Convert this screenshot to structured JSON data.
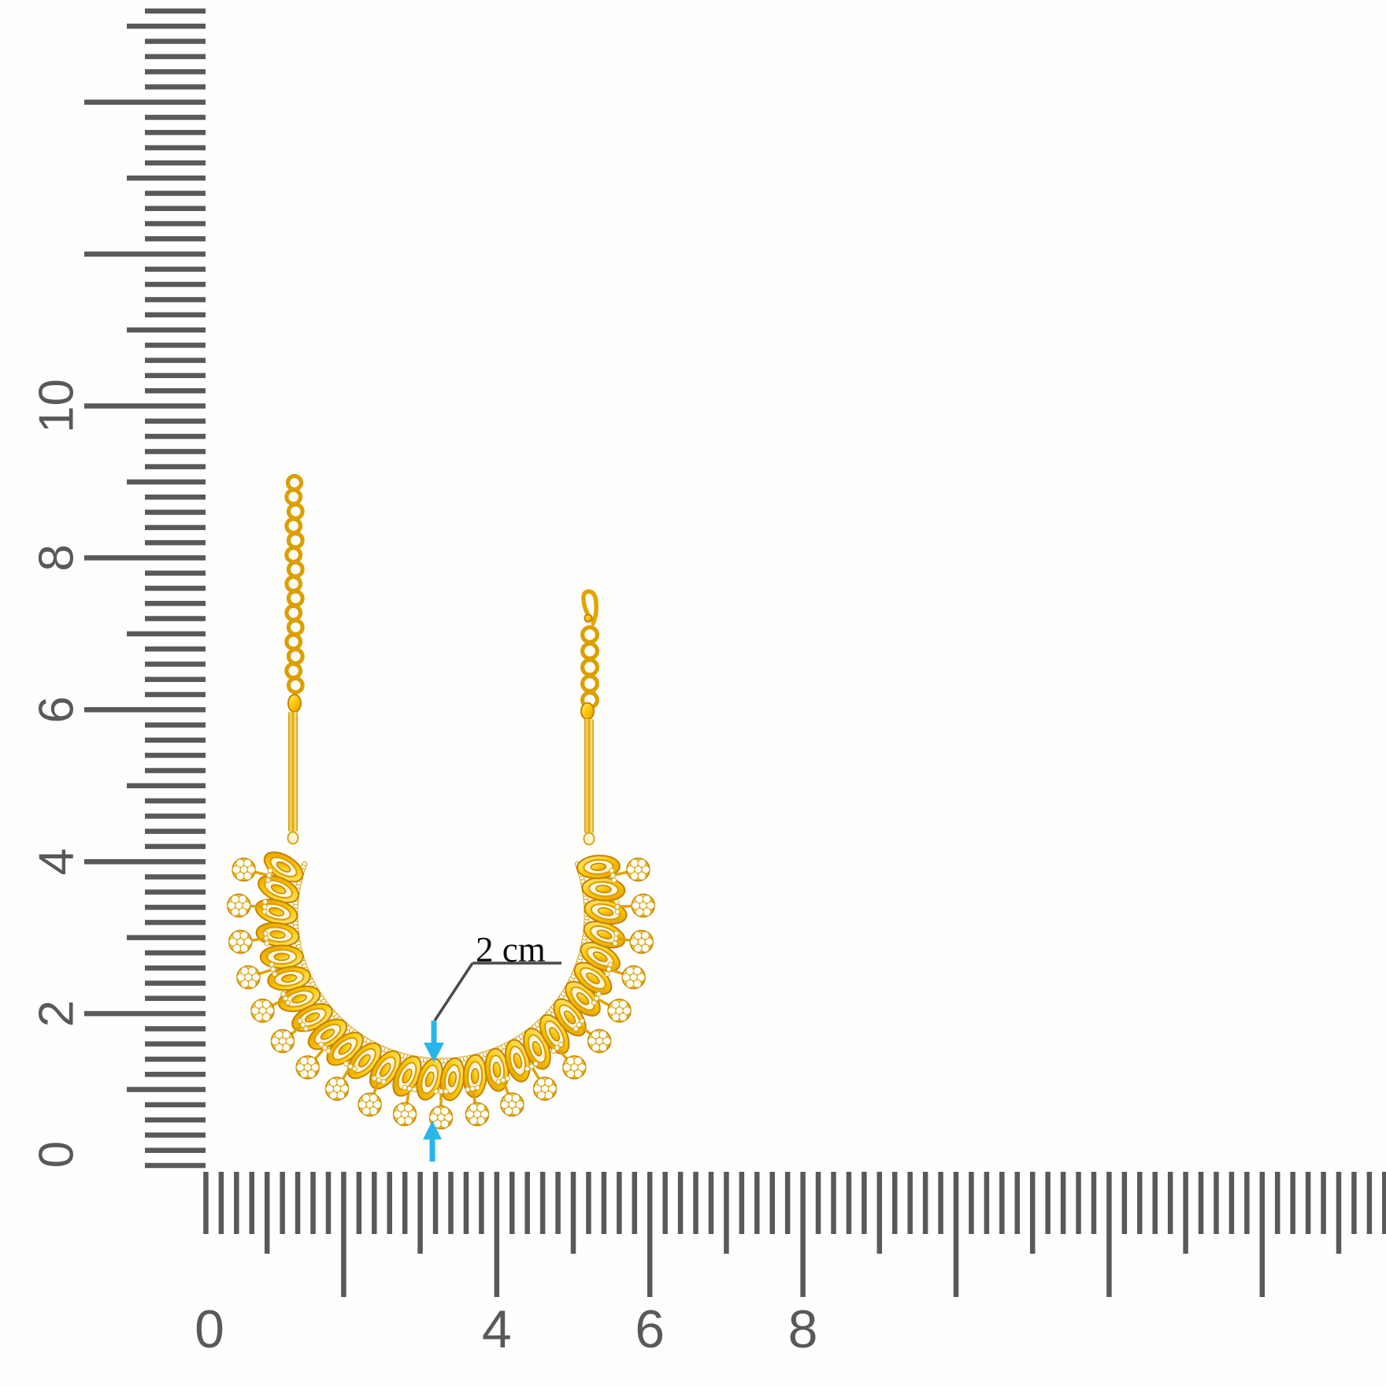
{
  "vertical_ruler": {
    "unit_labels": [
      "0",
      "2",
      "4",
      "6",
      "8",
      "10"
    ],
    "color": "#58595B"
  },
  "horizontal_ruler": {
    "unit_labels": [
      "0",
      "4",
      "6",
      "8"
    ],
    "color": "#58595B"
  },
  "annotation": {
    "label": "2 cm",
    "text_color": "#0A0A0A",
    "leader_color": "#4A4A4C",
    "arrow_color": "#29B6EA"
  },
  "necklace": {
    "gold_color": "#F7BE06",
    "stone_color": "#FFFDF4"
  }
}
